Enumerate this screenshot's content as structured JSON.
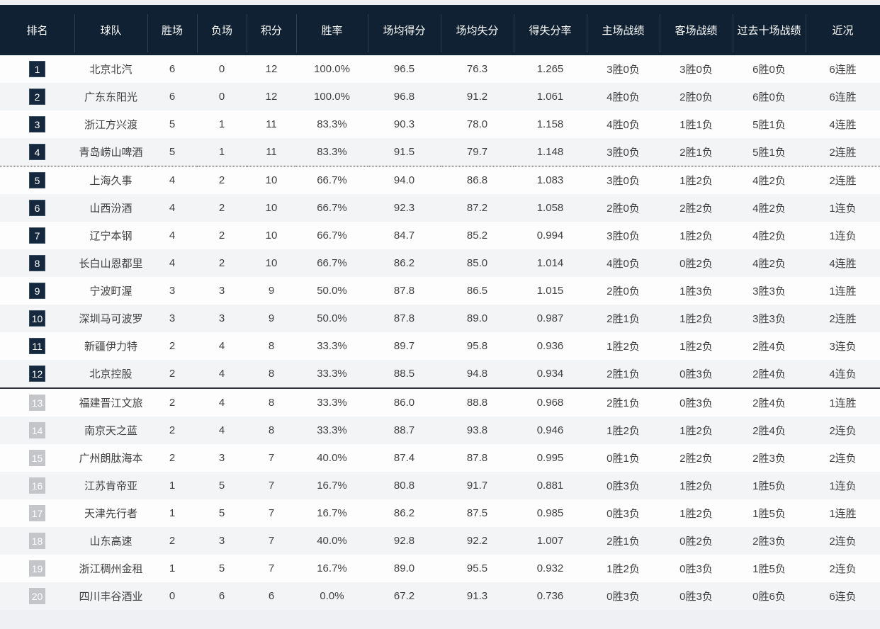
{
  "colors": {
    "header_bg": "#0f2133",
    "header_text": "#ffffff",
    "page_bg": "#eef0f4",
    "row_bg": "#fdfdfe",
    "row_alt_bg": "#f3f4f6",
    "cell_text": "#404040",
    "rank_badge_top_bg": "#16283e",
    "rank_badge_top_border": "#3a4e63",
    "rank_badge_lower_bg": "#c3c5c9",
    "rank_badge_text": "#ffffff",
    "divider_dotted": "#222222",
    "divider_solid": "#2e3238"
  },
  "table": {
    "columns": [
      {
        "key": "rank",
        "label": "排名"
      },
      {
        "key": "team",
        "label": "球队"
      },
      {
        "key": "wins",
        "label": "胜场"
      },
      {
        "key": "losses",
        "label": "负场"
      },
      {
        "key": "points",
        "label": "积分"
      },
      {
        "key": "win_pct",
        "label": "胜率"
      },
      {
        "key": "ppg",
        "label": "场均得分"
      },
      {
        "key": "papg",
        "label": "场均失分"
      },
      {
        "key": "ratio",
        "label": "得失分率"
      },
      {
        "key": "home",
        "label": "主场战绩"
      },
      {
        "key": "away",
        "label": "客场战绩"
      },
      {
        "key": "last10",
        "label": "过去十场战绩"
      },
      {
        "key": "streak",
        "label": "近况"
      }
    ],
    "dividers": {
      "dotted_after_rank": 4,
      "solid_after_rank": 12
    },
    "rows": [
      {
        "rank": "1",
        "zone": "top",
        "team": "北京北汽",
        "wins": "6",
        "losses": "0",
        "points": "12",
        "win_pct": "100.0%",
        "ppg": "96.5",
        "papg": "76.3",
        "ratio": "1.265",
        "home": "3胜0负",
        "away": "3胜0负",
        "last10": "6胜0负",
        "streak": "6连胜"
      },
      {
        "rank": "2",
        "zone": "top",
        "team": "广东东阳光",
        "wins": "6",
        "losses": "0",
        "points": "12",
        "win_pct": "100.0%",
        "ppg": "96.8",
        "papg": "91.2",
        "ratio": "1.061",
        "home": "4胜0负",
        "away": "2胜0负",
        "last10": "6胜0负",
        "streak": "6连胜"
      },
      {
        "rank": "3",
        "zone": "top",
        "team": "浙江方兴渡",
        "wins": "5",
        "losses": "1",
        "points": "11",
        "win_pct": "83.3%",
        "ppg": "90.3",
        "papg": "78.0",
        "ratio": "1.158",
        "home": "4胜0负",
        "away": "1胜1负",
        "last10": "5胜1负",
        "streak": "4连胜"
      },
      {
        "rank": "4",
        "zone": "top",
        "team": "青岛崂山啤酒",
        "wins": "5",
        "losses": "1",
        "points": "11",
        "win_pct": "83.3%",
        "ppg": "91.5",
        "papg": "79.7",
        "ratio": "1.148",
        "home": "3胜0负",
        "away": "2胜1负",
        "last10": "5胜1负",
        "streak": "2连胜"
      },
      {
        "rank": "5",
        "zone": "top",
        "team": "上海久事",
        "wins": "4",
        "losses": "2",
        "points": "10",
        "win_pct": "66.7%",
        "ppg": "94.0",
        "papg": "86.8",
        "ratio": "1.083",
        "home": "3胜0负",
        "away": "1胜2负",
        "last10": "4胜2负",
        "streak": "2连胜"
      },
      {
        "rank": "6",
        "zone": "top",
        "team": "山西汾酒",
        "wins": "4",
        "losses": "2",
        "points": "10",
        "win_pct": "66.7%",
        "ppg": "92.3",
        "papg": "87.2",
        "ratio": "1.058",
        "home": "2胜0负",
        "away": "2胜2负",
        "last10": "4胜2负",
        "streak": "1连负"
      },
      {
        "rank": "7",
        "zone": "top",
        "team": "辽宁本钢",
        "wins": "4",
        "losses": "2",
        "points": "10",
        "win_pct": "66.7%",
        "ppg": "84.7",
        "papg": "85.2",
        "ratio": "0.994",
        "home": "3胜0负",
        "away": "1胜2负",
        "last10": "4胜2负",
        "streak": "1连负"
      },
      {
        "rank": "8",
        "zone": "top",
        "team": "长白山恩都里",
        "wins": "4",
        "losses": "2",
        "points": "10",
        "win_pct": "66.7%",
        "ppg": "86.2",
        "papg": "85.0",
        "ratio": "1.014",
        "home": "4胜0负",
        "away": "0胜2负",
        "last10": "4胜2负",
        "streak": "4连胜"
      },
      {
        "rank": "9",
        "zone": "top",
        "team": "宁波町渥",
        "wins": "3",
        "losses": "3",
        "points": "9",
        "win_pct": "50.0%",
        "ppg": "87.8",
        "papg": "86.5",
        "ratio": "1.015",
        "home": "2胜0负",
        "away": "1胜3负",
        "last10": "3胜3负",
        "streak": "1连胜"
      },
      {
        "rank": "10",
        "zone": "top",
        "team": "深圳马可波罗",
        "wins": "3",
        "losses": "3",
        "points": "9",
        "win_pct": "50.0%",
        "ppg": "87.8",
        "papg": "89.0",
        "ratio": "0.987",
        "home": "2胜1负",
        "away": "1胜2负",
        "last10": "3胜3负",
        "streak": "2连胜"
      },
      {
        "rank": "11",
        "zone": "top",
        "team": "新疆伊力特",
        "wins": "2",
        "losses": "4",
        "points": "8",
        "win_pct": "33.3%",
        "ppg": "89.7",
        "papg": "95.8",
        "ratio": "0.936",
        "home": "1胜2负",
        "away": "1胜2负",
        "last10": "2胜4负",
        "streak": "3连负"
      },
      {
        "rank": "12",
        "zone": "top",
        "team": "北京控股",
        "wins": "2",
        "losses": "4",
        "points": "8",
        "win_pct": "33.3%",
        "ppg": "88.5",
        "papg": "94.8",
        "ratio": "0.934",
        "home": "2胜1负",
        "away": "0胜3负",
        "last10": "2胜4负",
        "streak": "4连负"
      },
      {
        "rank": "13",
        "zone": "lower",
        "team": "福建晋江文旅",
        "wins": "2",
        "losses": "4",
        "points": "8",
        "win_pct": "33.3%",
        "ppg": "86.0",
        "papg": "88.8",
        "ratio": "0.968",
        "home": "2胜1负",
        "away": "0胜3负",
        "last10": "2胜4负",
        "streak": "1连胜"
      },
      {
        "rank": "14",
        "zone": "lower",
        "team": "南京天之蓝",
        "wins": "2",
        "losses": "4",
        "points": "8",
        "win_pct": "33.3%",
        "ppg": "88.7",
        "papg": "93.8",
        "ratio": "0.946",
        "home": "1胜2负",
        "away": "1胜2负",
        "last10": "2胜4负",
        "streak": "2连负"
      },
      {
        "rank": "15",
        "zone": "lower",
        "team": "广州朗肽海本",
        "wins": "2",
        "losses": "3",
        "points": "7",
        "win_pct": "40.0%",
        "ppg": "87.4",
        "papg": "87.8",
        "ratio": "0.995",
        "home": "0胜1负",
        "away": "2胜2负",
        "last10": "2胜3负",
        "streak": "2连负"
      },
      {
        "rank": "16",
        "zone": "lower",
        "team": "江苏肯帝亚",
        "wins": "1",
        "losses": "5",
        "points": "7",
        "win_pct": "16.7%",
        "ppg": "80.8",
        "papg": "91.7",
        "ratio": "0.881",
        "home": "0胜3负",
        "away": "1胜2负",
        "last10": "1胜5负",
        "streak": "1连负"
      },
      {
        "rank": "17",
        "zone": "lower",
        "team": "天津先行者",
        "wins": "1",
        "losses": "5",
        "points": "7",
        "win_pct": "16.7%",
        "ppg": "86.2",
        "papg": "87.5",
        "ratio": "0.985",
        "home": "0胜3负",
        "away": "1胜2负",
        "last10": "1胜5负",
        "streak": "1连胜"
      },
      {
        "rank": "18",
        "zone": "lower",
        "team": "山东高速",
        "wins": "2",
        "losses": "3",
        "points": "7",
        "win_pct": "40.0%",
        "ppg": "92.8",
        "papg": "92.2",
        "ratio": "1.007",
        "home": "2胜1负",
        "away": "0胜2负",
        "last10": "2胜3负",
        "streak": "2连负"
      },
      {
        "rank": "19",
        "zone": "lower",
        "team": "浙江稠州金租",
        "wins": "1",
        "losses": "5",
        "points": "7",
        "win_pct": "16.7%",
        "ppg": "89.0",
        "papg": "95.5",
        "ratio": "0.932",
        "home": "1胜2负",
        "away": "0胜3负",
        "last10": "1胜5负",
        "streak": "2连负"
      },
      {
        "rank": "20",
        "zone": "lower",
        "team": "四川丰谷酒业",
        "wins": "0",
        "losses": "6",
        "points": "6",
        "win_pct": "0.0%",
        "ppg": "67.2",
        "papg": "91.3",
        "ratio": "0.736",
        "home": "0胜3负",
        "away": "0胜3负",
        "last10": "0胜6负",
        "streak": "6连负"
      }
    ]
  }
}
